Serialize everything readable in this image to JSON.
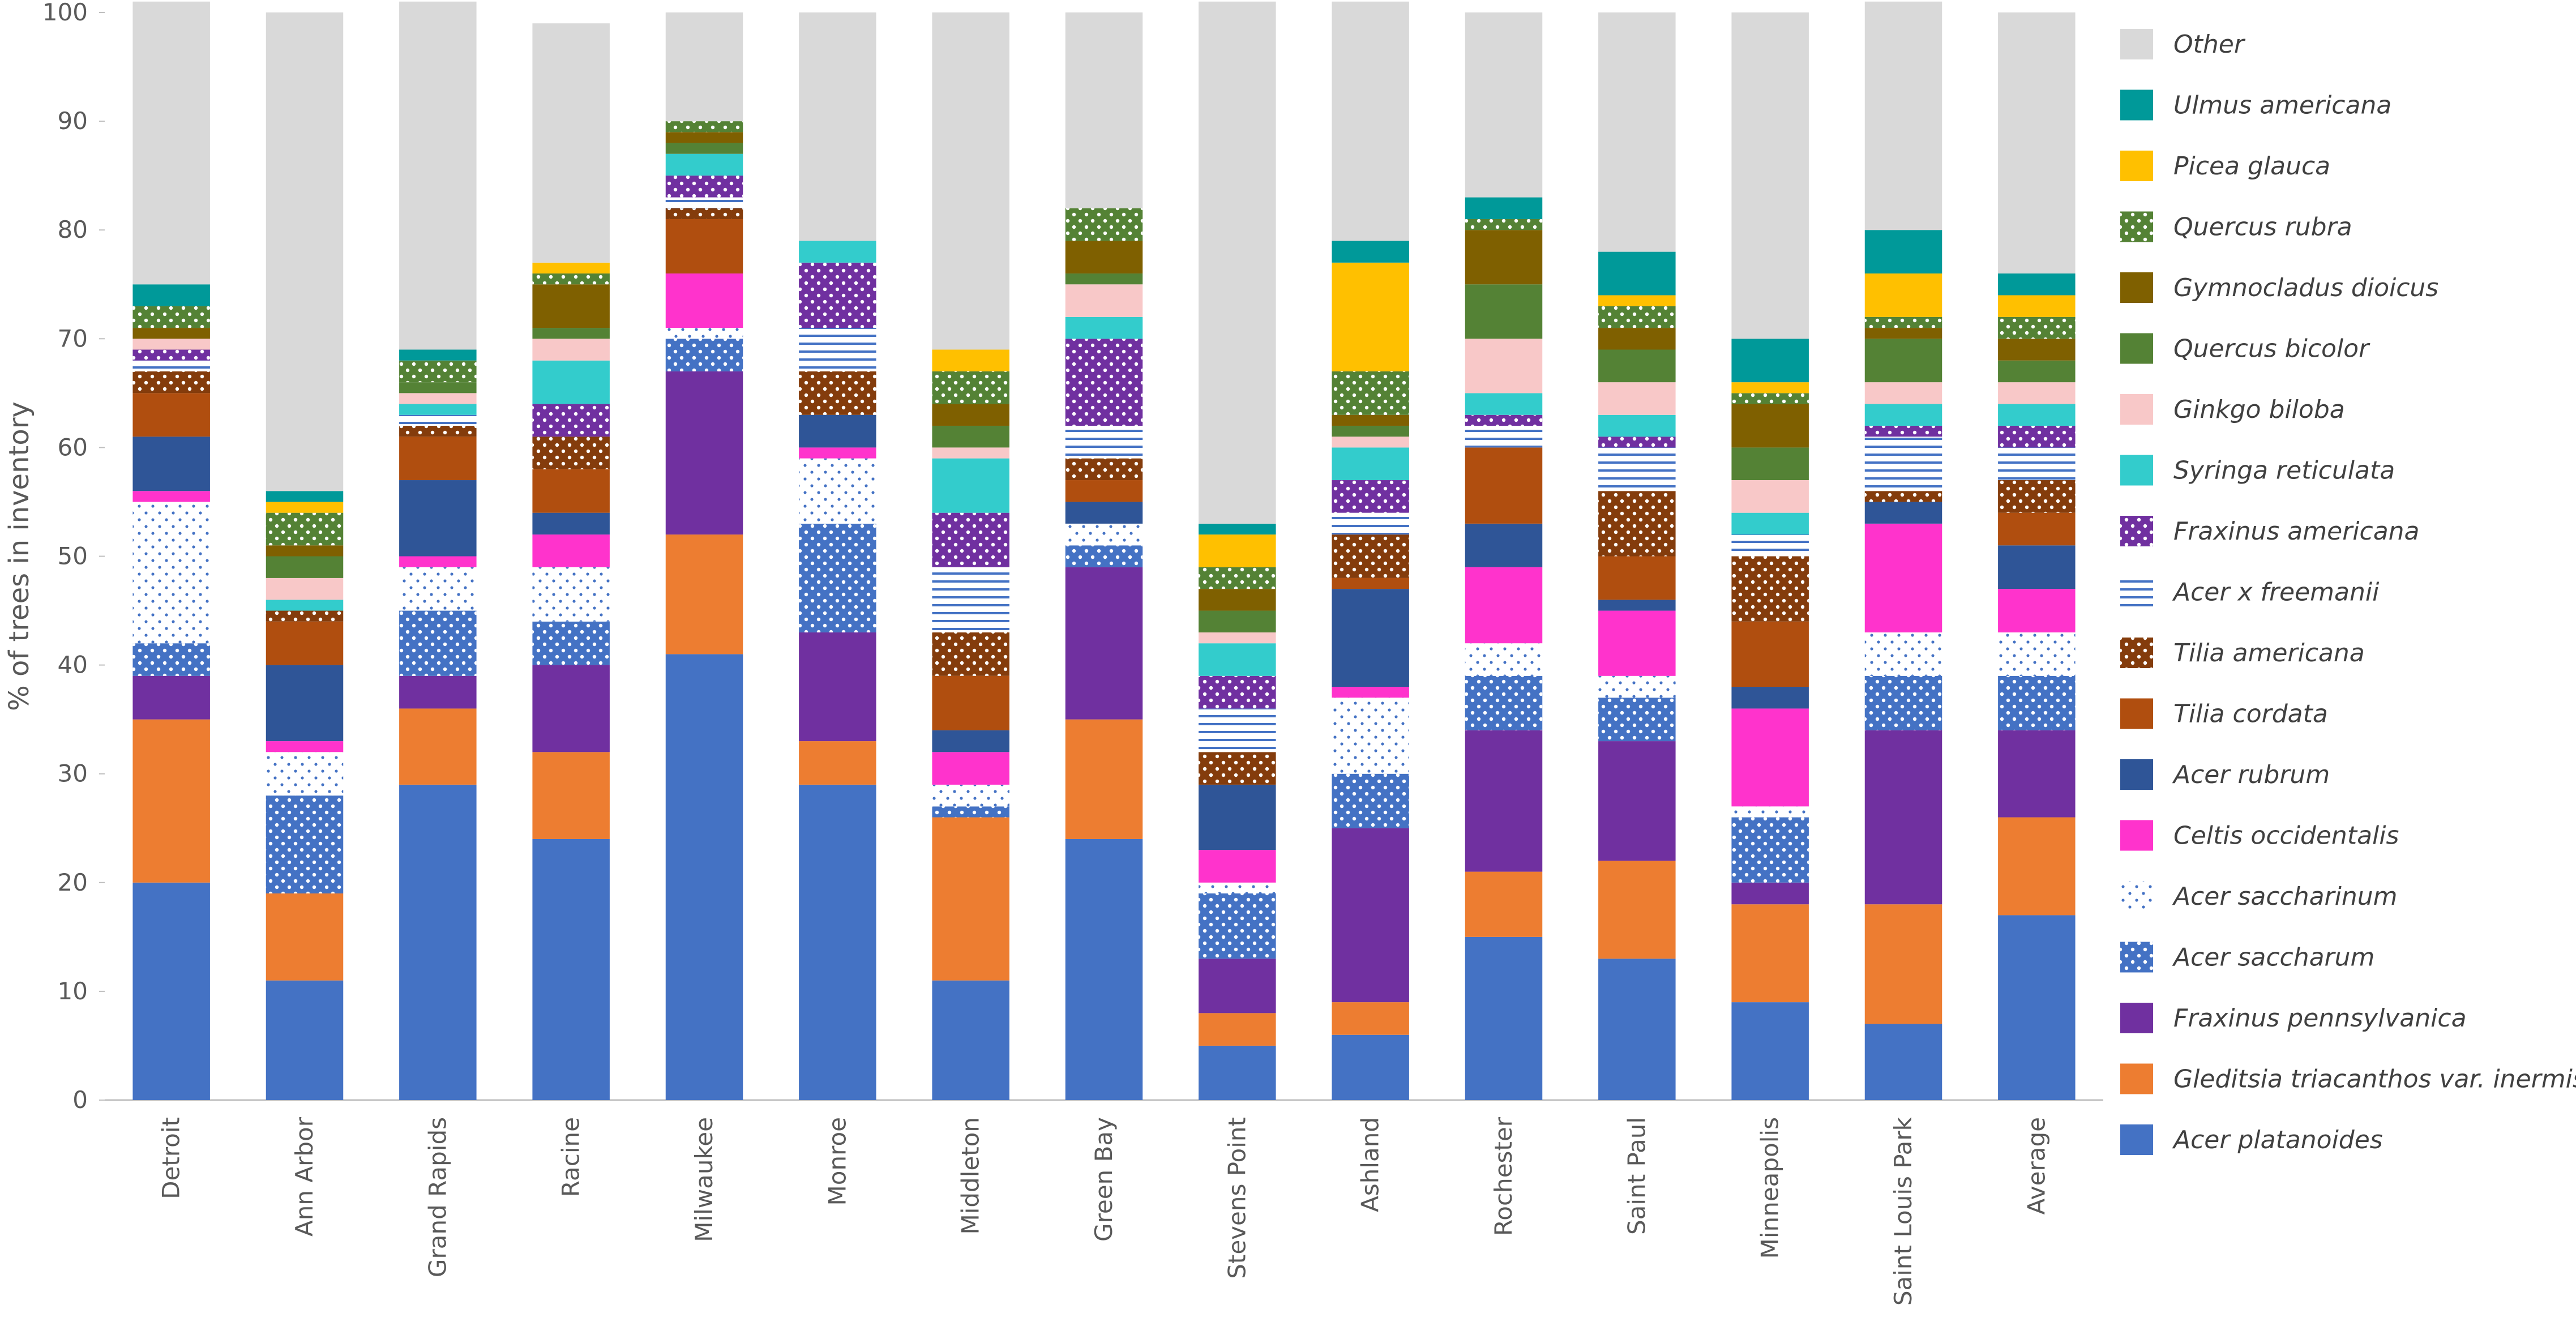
{
  "chart_data": {
    "type": "bar",
    "stacked": true,
    "title": "",
    "xlabel": "",
    "ylabel": "% of trees in inventory",
    "ylim": [
      0,
      100
    ],
    "yticks": [
      0,
      10,
      20,
      30,
      40,
      50,
      60,
      70,
      80,
      90,
      100
    ],
    "grid": false,
    "legend_position": "right",
    "categories": [
      "Detroit",
      "Ann Arbor",
      "Grand Rapids",
      "Racine",
      "Milwaukee",
      "Monroe",
      "Middleton",
      "Green Bay",
      "Stevens Point",
      "Ashland",
      "Rochester",
      "Saint Paul",
      "Minneapolis",
      "Saint Louis Park",
      "Average"
    ],
    "series": [
      {
        "name": "Acer platanoides",
        "color": "#4472C4",
        "pattern": "solid",
        "values": [
          20,
          11,
          29,
          24,
          41,
          29,
          11,
          24,
          5,
          6,
          15,
          13,
          9,
          7,
          17
        ]
      },
      {
        "name": "Gleditsia triacanthos var. inermis",
        "color": "#ED7D31",
        "pattern": "solid",
        "values": [
          15,
          8,
          7,
          8,
          11,
          4,
          15,
          11,
          3,
          3,
          6,
          9,
          9,
          11,
          9
        ]
      },
      {
        "name": "Fraxinus pennsylvanica",
        "color": "#7030A0",
        "pattern": "solid",
        "values": [
          4,
          0,
          3,
          8,
          15,
          10,
          0,
          14,
          5,
          16,
          13,
          11,
          2,
          16,
          8
        ]
      },
      {
        "name": "Acer saccharum",
        "color": "#4472C4",
        "pattern": "dots-white",
        "values": [
          3,
          9,
          6,
          4,
          3,
          10,
          1,
          2,
          6,
          5,
          5,
          4,
          6,
          5,
          5
        ]
      },
      {
        "name": "Acer saccharinum",
        "color": "#FFFFFF",
        "pattern": "dots-blue",
        "values": [
          13,
          4,
          4,
          5,
          1,
          6,
          2,
          2,
          1,
          7,
          3,
          2,
          1,
          4,
          4
        ]
      },
      {
        "name": "Celtis occidentalis",
        "color": "#FF33CC",
        "pattern": "solid",
        "values": [
          1,
          1,
          1,
          3,
          5,
          1,
          3,
          0,
          3,
          1,
          7,
          6,
          9,
          10,
          4
        ]
      },
      {
        "name": "Acer rubrum",
        "color": "#2F5597",
        "pattern": "solid",
        "values": [
          5,
          7,
          7,
          2,
          0,
          3,
          2,
          2,
          6,
          9,
          4,
          1,
          2,
          2,
          4
        ]
      },
      {
        "name": "Tilia cordata",
        "color": "#B04E0F",
        "pattern": "solid",
        "values": [
          4,
          4,
          4,
          4,
          5,
          0,
          5,
          2,
          0,
          1,
          7,
          4,
          6,
          0,
          3
        ]
      },
      {
        "name": "Tilia americana",
        "color": "#843C0C",
        "pattern": "dots-white",
        "values": [
          2,
          1,
          1,
          3,
          1,
          4,
          4,
          2,
          3,
          4,
          0,
          6,
          6,
          1,
          3
        ]
      },
      {
        "name": "Acer x freemanii",
        "color": "#FFFFFF",
        "pattern": "stripes-blue",
        "values": [
          1,
          0,
          1,
          0,
          1,
          4,
          6,
          3,
          4,
          2,
          2,
          4,
          2,
          5,
          3
        ]
      },
      {
        "name": "Fraxinus americana",
        "color": "#7030A0",
        "pattern": "dots-white",
        "values": [
          1,
          0,
          0,
          3,
          2,
          6,
          5,
          8,
          3,
          3,
          1,
          1,
          0,
          1,
          2
        ]
      },
      {
        "name": "Syringa reticulata",
        "color": "#33CCCC",
        "pattern": "solid",
        "values": [
          0,
          1,
          1,
          4,
          2,
          2,
          5,
          2,
          3,
          3,
          2,
          2,
          2,
          2,
          2
        ]
      },
      {
        "name": "Ginkgo biloba",
        "color": "#F8C8C8",
        "pattern": "solid",
        "values": [
          1,
          2,
          1,
          2,
          0,
          0,
          1,
          3,
          1,
          1,
          5,
          3,
          3,
          2,
          2
        ]
      },
      {
        "name": "Quercus bicolor",
        "color": "#548235",
        "pattern": "solid",
        "values": [
          0,
          2,
          1,
          1,
          1,
          0,
          2,
          1,
          2,
          1,
          5,
          3,
          3,
          4,
          2
        ]
      },
      {
        "name": "Gymnocladus dioicus",
        "color": "#7F6000",
        "pattern": "solid",
        "values": [
          1,
          1,
          0,
          4,
          1,
          0,
          2,
          3,
          2,
          1,
          5,
          2,
          4,
          1,
          2
        ]
      },
      {
        "name": "Quercus rubra",
        "color": "#548235",
        "pattern": "dots-white",
        "values": [
          2,
          3,
          2,
          1,
          1,
          0,
          3,
          3,
          2,
          4,
          1,
          2,
          1,
          1,
          2
        ]
      },
      {
        "name": "Picea glauca",
        "color": "#FFC000",
        "pattern": "solid",
        "values": [
          0,
          1,
          0,
          1,
          0,
          0,
          2,
          0,
          3,
          10,
          0,
          1,
          1,
          4,
          2
        ]
      },
      {
        "name": "Ulmus americana",
        "color": "#009999",
        "pattern": "solid",
        "values": [
          2,
          1,
          1,
          0,
          0,
          0,
          0,
          0,
          1,
          2,
          2,
          4,
          4,
          4,
          2
        ]
      },
      {
        "name": "Other",
        "color": "#D9D9D9",
        "pattern": "solid",
        "values": [
          26,
          44,
          32,
          22,
          10,
          21,
          31,
          18,
          48,
          22,
          17,
          22,
          30,
          21,
          24
        ]
      }
    ]
  }
}
